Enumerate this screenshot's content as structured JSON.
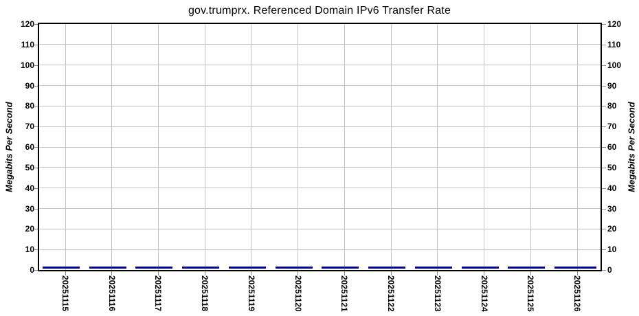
{
  "title": "gov.trumprx. Referenced Domain IPv6 Transfer Rate",
  "axes": {
    "left_label": "Megabits Per Second",
    "right_label": "Megabits Per Second"
  },
  "colors": {
    "line": "#000099",
    "grid": "#c3c3c3",
    "axis_border": "#000000",
    "tick_mark": "#8c8c8c",
    "background": "#ffffff"
  },
  "chart_data": {
    "type": "line",
    "title": "gov.trumprx. Referenced Domain IPv6 Transfer Rate",
    "xlabel": "",
    "ylabel": "Megabits Per Second",
    "ylabel_right": "Megabits Per Second",
    "ylim": [
      0,
      120
    ],
    "y_ticks": [
      0,
      10,
      20,
      30,
      40,
      50,
      60,
      70,
      80,
      90,
      100,
      110,
      120
    ],
    "grid": true,
    "legend": "none",
    "categories": [
      "20251115",
      "20251116",
      "20251117",
      "20251118",
      "20251119",
      "20251120",
      "20251121",
      "20251122",
      "20251123",
      "20251124",
      "20251125",
      "20251126"
    ],
    "series": [
      {
        "name": "IPv6 Transfer Rate",
        "color": "#000099",
        "values": [
          0.3,
          0.3,
          0.3,
          0.3,
          0.3,
          0.3,
          0.3,
          0.3,
          0.3,
          0.3,
          0.3,
          0.3
        ],
        "note_visible_pattern": "flat near-zero daily segments with short gaps between days"
      }
    ]
  }
}
